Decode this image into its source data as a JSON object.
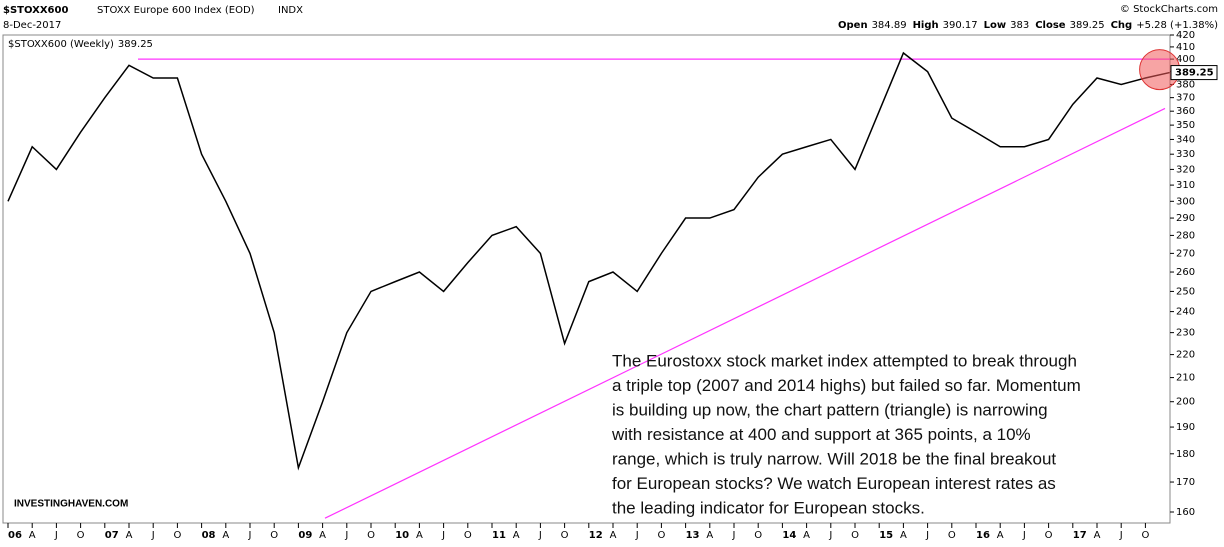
{
  "chart_data": {
    "type": "line",
    "symbol": "$STOXX600",
    "title": "STOXX Europe 600 Index (EOD)",
    "exchange": "INDX",
    "date": "8-Dec-2017",
    "source": "© StockCharts.com",
    "quote": [
      {
        "label": "Open",
        "value": 384.89
      },
      {
        "label": "High",
        "value": 390.17
      },
      {
        "label": "Low",
        "value": 383.0
      },
      {
        "label": "Close",
        "value": 389.25
      }
    ],
    "change_label": "Chg",
    "change": "+5.28 (+1.38%)",
    "watermark": "INVESTINGHAVEN.COM",
    "annotation": [
      "The Eurostoxx stock market index attempted to break through",
      "a triple top (2007 and 2014 highs) but failed so far. Momentum",
      "is building up now, the chart pattern (triangle) is narrowing",
      "with resistance at 400 and support at 365 points, a 10%",
      "range, which is truly narrow. Will 2018 be the final breakout",
      "for European stocks? We watch European interest rates as",
      "the leading indicator for European stocks."
    ],
    "categories": [
      "06",
      "A",
      "J",
      "O",
      "07",
      "A",
      "J",
      "O",
      "08",
      "A",
      "J",
      "O",
      "09",
      "A",
      "J",
      "O",
      "10",
      "A",
      "J",
      "O",
      "11",
      "A",
      "J",
      "O",
      "12",
      "A",
      "J",
      "O",
      "13",
      "A",
      "J",
      "O",
      "14",
      "A",
      "J",
      "O",
      "15",
      "A",
      "J",
      "O",
      "16",
      "A",
      "J",
      "O",
      "17",
      "A",
      "J",
      "O",
      null
    ],
    "series": [
      {
        "name": "$STOXX600 (Weekly)",
        "color": "#000000",
        "values": [
          300,
          335,
          320,
          345,
          370,
          395,
          385,
          385,
          330,
          300,
          270,
          230,
          175,
          200,
          230,
          250,
          255,
          260,
          250,
          265,
          280,
          285,
          270,
          225,
          255,
          260,
          250,
          270,
          290,
          290,
          295,
          315,
          330,
          335,
          340,
          320,
          360,
          405,
          390,
          355,
          345,
          335,
          335,
          340,
          365,
          385,
          380,
          385,
          389.25
        ]
      }
    ],
    "resistance": 400,
    "support": [
      158,
      362
    ],
    "log": true,
    "ylim": [
      160,
      420
    ],
    "yticks": [
      160,
      170,
      180,
      190,
      200,
      210,
      220,
      230,
      240,
      250,
      260,
      270,
      280,
      290,
      300,
      310,
      320,
      330,
      340,
      350,
      360,
      370,
      380,
      390,
      400,
      410,
      420
    ],
    "grid": false
  }
}
